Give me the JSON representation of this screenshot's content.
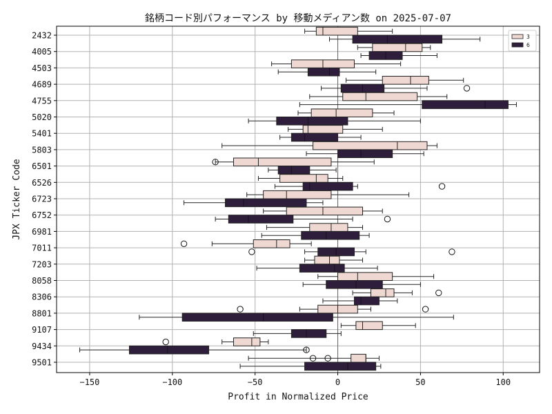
{
  "chart_data": {
    "type": "boxplot",
    "orientation": "horizontal",
    "title": "銘柄コード別パフォーマンス by 移動メディアン数 on 2025-07-07",
    "xlabel": "Profit in Normalized Price",
    "ylabel": "JPX Ticker Code",
    "xlim": [
      -170,
      122
    ],
    "xticks": [
      -150,
      -100,
      -50,
      0,
      50,
      100
    ],
    "xtick_labels": [
      "−150",
      "−100",
      "−50",
      "0",
      "50",
      "100"
    ],
    "reference_line_x": 0,
    "reference_line_color": "#e03030",
    "grid": true,
    "legend_position": "top-right",
    "series": [
      {
        "name": "3",
        "color": "#eed8d1"
      },
      {
        "name": "6",
        "color": "#2e1e3b"
      }
    ],
    "categories": [
      "2432",
      "4005",
      "4503",
      "4689",
      "4755",
      "5020",
      "5401",
      "5803",
      "6501",
      "6526",
      "6723",
      "6752",
      "6981",
      "7011",
      "7203",
      "8058",
      "8306",
      "8801",
      "9107",
      "9434",
      "9501"
    ],
    "boxes": [
      {
        "series": "3",
        "category": "2432",
        "whislo": -20,
        "q1": -13,
        "med": -9,
        "q3": 12,
        "whishi": 33,
        "fliers": []
      },
      {
        "series": "6",
        "category": "2432",
        "whislo": -5,
        "q1": 9,
        "med": 30,
        "q3": 63,
        "whishi": 86,
        "fliers": []
      },
      {
        "series": "3",
        "category": "4005",
        "whislo": 12,
        "q1": 21,
        "med": 41,
        "q3": 51,
        "whishi": 56,
        "fliers": []
      },
      {
        "series": "6",
        "category": "4005",
        "whislo": 14,
        "q1": 19,
        "med": 29,
        "q3": 39,
        "whishi": 60,
        "fliers": []
      },
      {
        "series": "3",
        "category": "4503",
        "whislo": -40,
        "q1": -28,
        "med": -9,
        "q3": 10,
        "whishi": 38,
        "fliers": []
      },
      {
        "series": "6",
        "category": "4503",
        "whislo": -36,
        "q1": -18,
        "med": -5,
        "q3": 1,
        "whishi": 23,
        "fliers": []
      },
      {
        "series": "3",
        "category": "4689",
        "whislo": 5,
        "q1": 27,
        "med": 44,
        "q3": 55,
        "whishi": 76,
        "fliers": []
      },
      {
        "series": "6",
        "category": "4689",
        "whislo": -10,
        "q1": 2,
        "med": 15,
        "q3": 28,
        "whishi": 54,
        "fliers": [
          78
        ]
      },
      {
        "series": "3",
        "category": "4755",
        "whislo": -17,
        "q1": 3,
        "med": 17,
        "q3": 48,
        "whishi": 66,
        "fliers": []
      },
      {
        "series": "6",
        "category": "4755",
        "whislo": -23,
        "q1": 51,
        "med": 89,
        "q3": 103,
        "whishi": 108,
        "fliers": []
      },
      {
        "series": "3",
        "category": "5020",
        "whislo": -24,
        "q1": -16,
        "med": -1,
        "q3": 21,
        "whishi": 34,
        "fliers": []
      },
      {
        "series": "6",
        "category": "5020",
        "whislo": -54,
        "q1": -37,
        "med": -18,
        "q3": 6,
        "whishi": 50,
        "fliers": []
      },
      {
        "series": "3",
        "category": "5401",
        "whislo": -30,
        "q1": -21,
        "med": -18,
        "q3": 3,
        "whishi": 27,
        "fliers": []
      },
      {
        "series": "6",
        "category": "5401",
        "whislo": -35,
        "q1": -28,
        "med": -20,
        "q3": 0,
        "whishi": 14,
        "fliers": []
      },
      {
        "series": "3",
        "category": "5803",
        "whislo": -70,
        "q1": -15,
        "med": 36,
        "q3": 54,
        "whishi": 60,
        "fliers": []
      },
      {
        "series": "6",
        "category": "5803",
        "whislo": -19,
        "q1": 0,
        "med": 14,
        "q3": 33,
        "whishi": 52,
        "fliers": []
      },
      {
        "series": "3",
        "category": "6501",
        "whislo": -74,
        "q1": -63,
        "med": -48,
        "q3": -4,
        "whishi": 22,
        "fliers": [
          -74
        ]
      },
      {
        "series": "6",
        "category": "6501",
        "whislo": -42,
        "q1": -36,
        "med": -28,
        "q3": -17,
        "whishi": -1,
        "fliers": []
      },
      {
        "series": "3",
        "category": "6526",
        "whislo": -48,
        "q1": -35,
        "med": -13,
        "q3": -6,
        "whishi": 3,
        "fliers": []
      },
      {
        "series": "6",
        "category": "6526",
        "whislo": -38,
        "q1": -21,
        "med": -17,
        "q3": 9,
        "whishi": 12,
        "fliers": [
          63
        ]
      },
      {
        "series": "3",
        "category": "6723",
        "whislo": -55,
        "q1": -45,
        "med": -31,
        "q3": -4,
        "whishi": 43,
        "fliers": []
      },
      {
        "series": "6",
        "category": "6723",
        "whislo": -93,
        "q1": -68,
        "med": -57,
        "q3": -19,
        "whishi": -9,
        "fliers": []
      },
      {
        "series": "3",
        "category": "6752",
        "whislo": -45,
        "q1": -31,
        "med": -9,
        "q3": 15,
        "whishi": 27,
        "fliers": []
      },
      {
        "series": "6",
        "category": "6752",
        "whislo": -74,
        "q1": -66,
        "med": -54,
        "q3": -27,
        "whishi": 9,
        "fliers": [
          30
        ]
      },
      {
        "series": "3",
        "category": "6981",
        "whislo": -43,
        "q1": -17,
        "med": -4,
        "q3": 6,
        "whishi": 15,
        "fliers": []
      },
      {
        "series": "6",
        "category": "6981",
        "whislo": -46,
        "q1": -22,
        "med": -7,
        "q3": 13,
        "whishi": 19,
        "fliers": []
      },
      {
        "series": "3",
        "category": "7011",
        "whislo": -76,
        "q1": -51,
        "med": -37,
        "q3": -29,
        "whishi": -16,
        "fliers": [
          -93
        ]
      },
      {
        "series": "6",
        "category": "7011",
        "whislo": -20,
        "q1": -12,
        "med": -1,
        "q3": 10,
        "whishi": 17,
        "fliers": [
          -52,
          69
        ]
      },
      {
        "series": "3",
        "category": "7203",
        "whislo": -20,
        "q1": -14,
        "med": -5,
        "q3": 1,
        "whishi": 15,
        "fliers": []
      },
      {
        "series": "6",
        "category": "7203",
        "whislo": -49,
        "q1": -23,
        "med": -2,
        "q3": 4,
        "whishi": 24,
        "fliers": []
      },
      {
        "series": "3",
        "category": "8058",
        "whislo": -12,
        "q1": 0,
        "med": 12,
        "q3": 33,
        "whishi": 58,
        "fliers": []
      },
      {
        "series": "6",
        "category": "8058",
        "whislo": -21,
        "q1": -7,
        "med": 11,
        "q3": 27,
        "whishi": 50,
        "fliers": []
      },
      {
        "series": "3",
        "category": "8306",
        "whislo": 9,
        "q1": 20,
        "med": 29,
        "q3": 34,
        "whishi": 45,
        "fliers": [
          61
        ]
      },
      {
        "series": "6",
        "category": "8306",
        "whislo": -9,
        "q1": 10,
        "med": 14,
        "q3": 25,
        "whishi": 36,
        "fliers": []
      },
      {
        "series": "3",
        "category": "8801",
        "whislo": -23,
        "q1": -12,
        "med": 0,
        "q3": 12,
        "whishi": 20,
        "fliers": [
          -59,
          53
        ]
      },
      {
        "series": "6",
        "category": "8801",
        "whislo": -120,
        "q1": -94,
        "med": -45,
        "q3": -3,
        "whishi": 70,
        "fliers": []
      },
      {
        "series": "3",
        "category": "9107",
        "whislo": 2,
        "q1": 11,
        "med": 15,
        "q3": 27,
        "whishi": 47,
        "fliers": []
      },
      {
        "series": "6",
        "category": "9107",
        "whislo": -51,
        "q1": -28,
        "med": -19,
        "q3": -7,
        "whishi": 2,
        "fliers": []
      },
      {
        "series": "3",
        "category": "9434",
        "whislo": -70,
        "q1": -63,
        "med": -52,
        "q3": -47,
        "whishi": -42,
        "fliers": [
          -104
        ]
      },
      {
        "series": "6",
        "category": "9434",
        "whislo": -156,
        "q1": -126,
        "med": -103,
        "q3": -78,
        "whishi": -19,
        "fliers": [
          -19
        ]
      },
      {
        "series": "3",
        "category": "9501",
        "whislo": -54,
        "q1": 8,
        "med": 17,
        "q3": 17,
        "whishi": 25,
        "fliers": [
          -15,
          -6
        ]
      },
      {
        "series": "6",
        "category": "9501",
        "whislo": -59,
        "q1": -20,
        "med": 6,
        "q3": 23,
        "whishi": 26,
        "fliers": []
      }
    ]
  }
}
